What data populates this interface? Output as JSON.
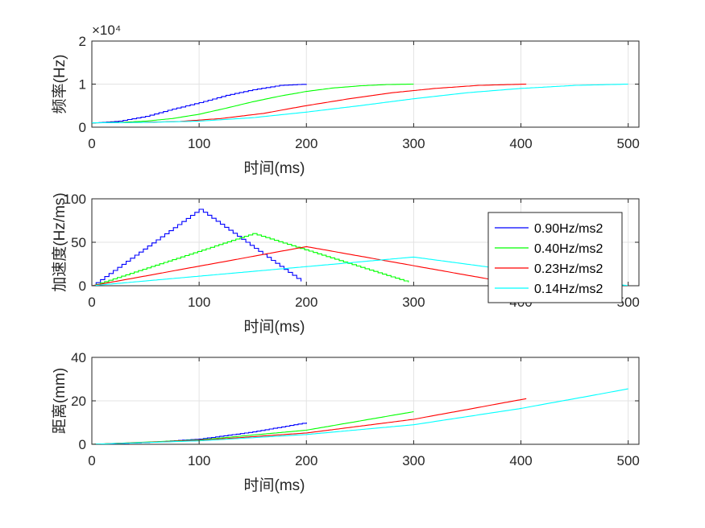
{
  "chart_data": [
    {
      "type": "line",
      "xlabel": "时间(ms)",
      "ylabel": "频率(Hz)",
      "exponent_label": "×10⁴",
      "xlim": [
        0,
        510
      ],
      "ylim": [
        0,
        20000
      ],
      "xticks": [
        0,
        100,
        200,
        300,
        400,
        500
      ],
      "yticks": [
        0,
        10000,
        20000
      ],
      "ytick_labels": [
        "0",
        "1",
        "2"
      ],
      "grid": true,
      "series": [
        {
          "color": "#0000ff",
          "step": true,
          "x": [
            0,
            10,
            25,
            50,
            75,
            100,
            125,
            150,
            175,
            200
          ],
          "y": [
            1000,
            1100,
            1400,
            2500,
            4200,
            5700,
            7400,
            8700,
            9700,
            10000
          ]
        },
        {
          "color": "#00ff00",
          "step": false,
          "x": [
            0,
            25,
            50,
            75,
            100,
            125,
            150,
            175,
            200,
            225,
            250,
            275,
            300
          ],
          "y": [
            1000,
            1100,
            1400,
            2000,
            3000,
            4400,
            5900,
            7200,
            8300,
            9100,
            9600,
            9900,
            10000
          ]
        },
        {
          "color": "#ff0000",
          "step": false,
          "x": [
            0,
            40,
            80,
            120,
            160,
            200,
            240,
            280,
            320,
            360,
            405
          ],
          "y": [
            1000,
            1100,
            1300,
            2000,
            3200,
            5000,
            6600,
            8000,
            9000,
            9700,
            10000
          ]
        },
        {
          "color": "#00ffff",
          "step": false,
          "x": [
            0,
            50,
            100,
            150,
            200,
            250,
            300,
            350,
            400,
            450,
            500
          ],
          "y": [
            1000,
            1100,
            1400,
            2200,
            3500,
            5000,
            6600,
            8000,
            9000,
            9700,
            10000
          ]
        }
      ]
    },
    {
      "type": "line",
      "xlabel": "时间(ms)",
      "ylabel": "加速度(Hz/ms)",
      "xlim": [
        0,
        510
      ],
      "ylim": [
        0,
        100
      ],
      "xticks": [
        0,
        100,
        200,
        300,
        400,
        500
      ],
      "yticks": [
        0,
        50,
        100
      ],
      "ytick_labels": [
        "0",
        "50",
        "100"
      ],
      "grid": true,
      "legend": {
        "position": "right",
        "entries": [
          "0.90Hz/ms2",
          "0.40Hz/ms2",
          "0.23Hz/ms2",
          "0.14Hz/ms2"
        ]
      },
      "series": [
        {
          "color": "#0000ff",
          "step": true,
          "x": [
            0,
            100,
            195
          ],
          "y": [
            0,
            88,
            5
          ]
        },
        {
          "color": "#00ff00",
          "step": true,
          "x": [
            0,
            150,
            295
          ],
          "y": [
            0,
            60,
            4
          ]
        },
        {
          "color": "#ff0000",
          "step": false,
          "x": [
            0,
            200,
            405
          ],
          "y": [
            0,
            45,
            0
          ]
        },
        {
          "color": "#00ffff",
          "step": false,
          "x": [
            0,
            300,
            500
          ],
          "y": [
            0,
            33,
            0
          ]
        }
      ]
    },
    {
      "type": "line",
      "xlabel": "时间(ms)",
      "ylabel": "距离(mm)",
      "xlim": [
        0,
        510
      ],
      "ylim": [
        0,
        40
      ],
      "xticks": [
        0,
        100,
        200,
        300,
        400,
        500
      ],
      "yticks": [
        0,
        20,
        40
      ],
      "ytick_labels": [
        "0",
        "20",
        "40"
      ],
      "grid": true,
      "series": [
        {
          "color": "#0000ff",
          "step": true,
          "x": [
            0,
            50,
            100,
            150,
            200
          ],
          "y": [
            0,
            0.8,
            2.4,
            5.7,
            10
          ]
        },
        {
          "color": "#00ff00",
          "step": false,
          "x": [
            0,
            100,
            200,
            300
          ],
          "y": [
            0,
            2,
            6.5,
            15
          ]
        },
        {
          "color": "#ff0000",
          "step": false,
          "x": [
            0,
            100,
            200,
            300,
            405
          ],
          "y": [
            0,
            1.8,
            5.2,
            11.5,
            21
          ]
        },
        {
          "color": "#00ffff",
          "step": false,
          "x": [
            0,
            100,
            200,
            300,
            400,
            500
          ],
          "y": [
            0,
            1.6,
            4.5,
            9,
            16.5,
            25.5
          ]
        }
      ]
    }
  ]
}
